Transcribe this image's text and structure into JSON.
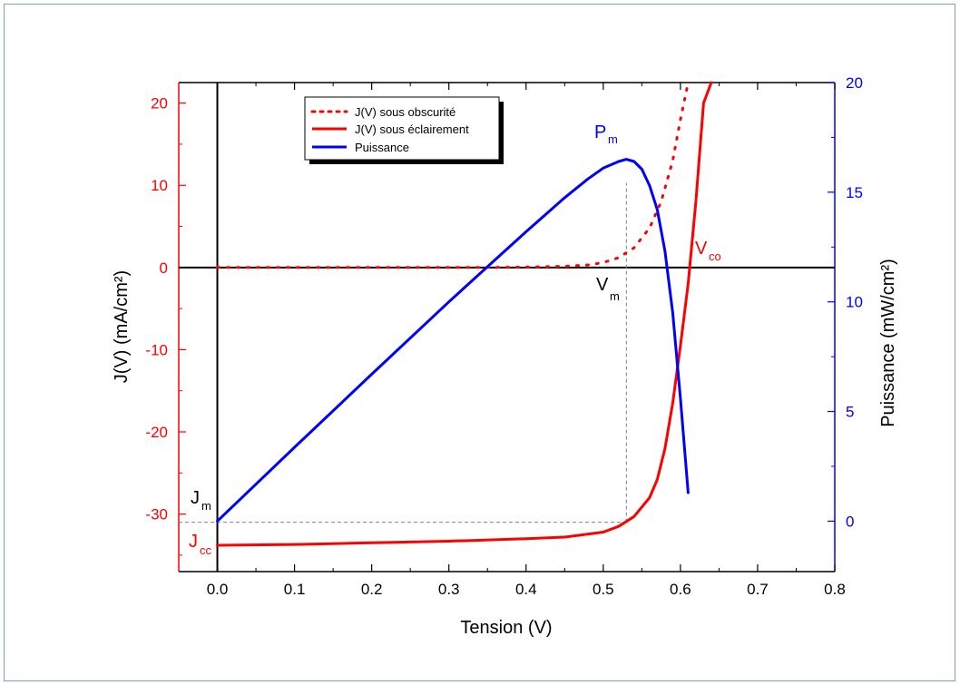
{
  "chart_data": {
    "type": "line",
    "title": "",
    "xlabel": "Tension (V)",
    "ylabel_left": "J(V) (mA/cm²)",
    "ylabel_right": "Puissance (mW/cm²)",
    "xlim": [
      -0.05,
      0.8
    ],
    "ylim_left": [
      -37,
      22.5
    ],
    "ylim_right": [
      -2.3,
      20
    ],
    "x_ticks": [
      "0.0",
      "0.1",
      "0.2",
      "0.3",
      "0.4",
      "0.5",
      "0.6",
      "0.7",
      "0.8"
    ],
    "y_left_ticks": [
      "-30",
      "-20",
      "-10",
      "0",
      "10",
      "20"
    ],
    "y_right_ticks": [
      "0",
      "5",
      "10",
      "15",
      "20"
    ],
    "legend": {
      "position": "top-left",
      "items": [
        {
          "label": "J(V) sous obscurité",
          "color": "#ff0000",
          "style": "dotted"
        },
        {
          "label": "J(V) sous éclairement",
          "color": "#ff0000",
          "style": "solid"
        },
        {
          "label": "Puissance",
          "color": "#0000ff",
          "style": "solid"
        }
      ]
    },
    "series": [
      {
        "name": "J(V) sous obscurité",
        "axis": "left",
        "color": "#ff0000",
        "style": "dotted",
        "x": [
          0.0,
          0.05,
          0.1,
          0.15,
          0.2,
          0.25,
          0.3,
          0.35,
          0.4,
          0.45,
          0.48,
          0.5,
          0.52,
          0.54,
          0.56,
          0.575,
          0.59,
          0.6,
          0.61
        ],
        "y": [
          0,
          0,
          0,
          0,
          0,
          0,
          0,
          0,
          0.05,
          0.15,
          0.3,
          0.6,
          1.2,
          2.4,
          4.8,
          8.0,
          13.0,
          18.0,
          22.5
        ]
      },
      {
        "name": "J(V) sous éclairement",
        "axis": "left",
        "color": "#ff0000",
        "style": "solid",
        "x": [
          0.0,
          0.1,
          0.2,
          0.3,
          0.4,
          0.45,
          0.5,
          0.52,
          0.54,
          0.56,
          0.57,
          0.58,
          0.59,
          0.6,
          0.61,
          0.62,
          0.63,
          0.64
        ],
        "y": [
          -33.8,
          -33.7,
          -33.5,
          -33.3,
          -33.0,
          -32.8,
          -32.2,
          -31.5,
          -30.3,
          -28.0,
          -25.8,
          -22.0,
          -16.5,
          -9.5,
          -2.0,
          8.0,
          20.0,
          22.5
        ]
      },
      {
        "name": "Puissance",
        "axis": "right",
        "color": "#0000ff",
        "style": "solid",
        "x": [
          0.0,
          0.1,
          0.2,
          0.3,
          0.35,
          0.4,
          0.45,
          0.48,
          0.5,
          0.52,
          0.53,
          0.54,
          0.55,
          0.56,
          0.57,
          0.58,
          0.59,
          0.6,
          0.61
        ],
        "y": [
          0.0,
          3.37,
          6.7,
          10.0,
          11.6,
          13.2,
          14.75,
          15.6,
          16.1,
          16.4,
          16.5,
          16.4,
          16.05,
          15.3,
          14.2,
          12.3,
          9.5,
          5.6,
          1.3
        ]
      }
    ],
    "annotations": [
      {
        "text": "P",
        "sub": "m",
        "color": "#0000ff"
      },
      {
        "text": "V",
        "sub": "m",
        "color": "#000000"
      },
      {
        "text": "V",
        "sub": "co",
        "color": "#ff0000"
      },
      {
        "text": "J",
        "sub": "m",
        "color": "#000000"
      },
      {
        "text": "J",
        "sub": "cc",
        "color": "#ff0000"
      }
    ],
    "reference_lines": [
      {
        "orientation": "vertical",
        "x": 0.53,
        "y_from": -31.0,
        "y_to": 10.3,
        "style": "dashed",
        "color": "#808080"
      },
      {
        "orientation": "horizontal",
        "y": -31.0,
        "x_from": -0.05,
        "x_to": 0.53,
        "style": "dashed",
        "color": "#808080"
      }
    ],
    "grid": false
  }
}
